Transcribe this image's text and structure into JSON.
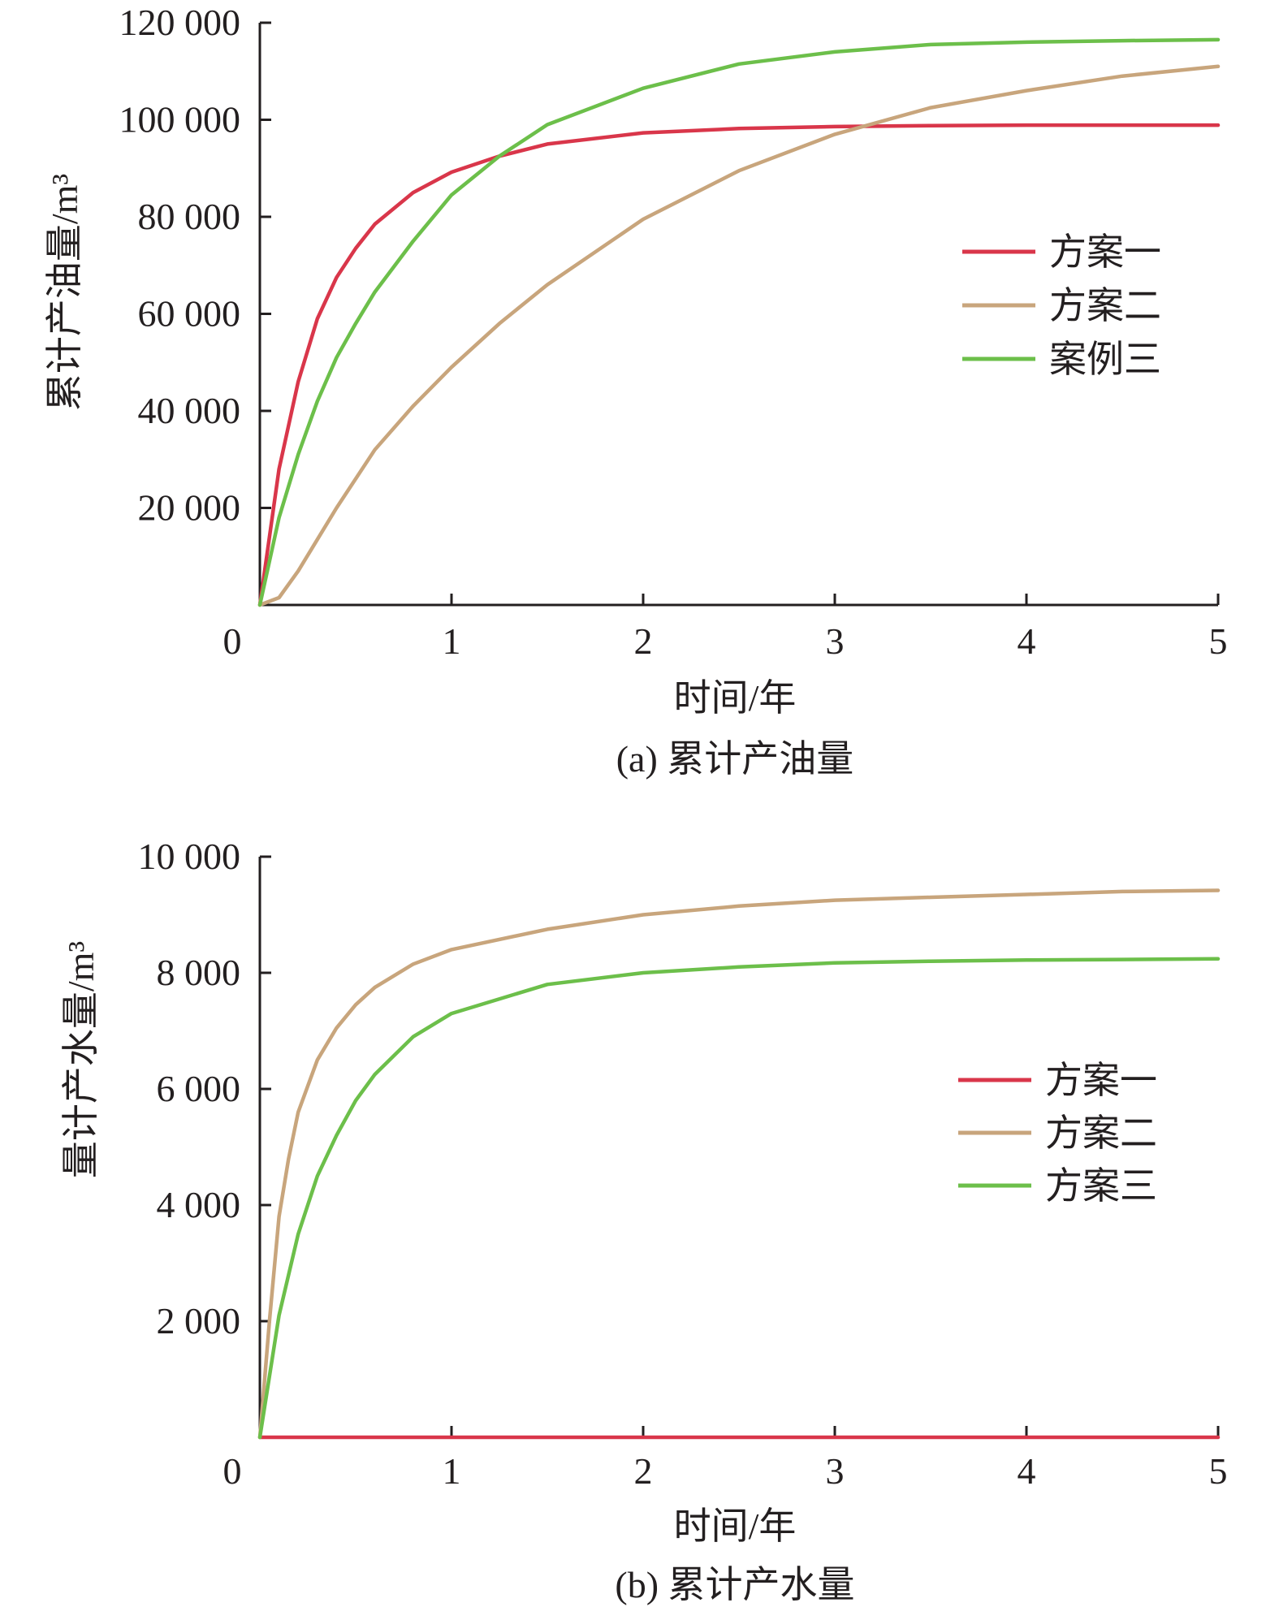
{
  "colors": {
    "scheme1": "#d9364a",
    "scheme2": "#c8a57c",
    "scheme3": "#6cbf4a",
    "axis": "#231f20"
  },
  "chart_data": [
    {
      "type": "line",
      "caption": "(a) 累计产油量",
      "xlabel": "时间/年",
      "ylabel": "累计产油量/m³",
      "xlim": [
        0,
        5
      ],
      "ylim": [
        0,
        120000
      ],
      "xticks": [
        0,
        1,
        2,
        3,
        4,
        5
      ],
      "xtick_labels": [
        "0",
        "1",
        "2",
        "3",
        "4",
        "5"
      ],
      "yticks": [
        20000,
        40000,
        60000,
        80000,
        100000,
        120000
      ],
      "ytick_labels": [
        "20 000",
        "40 000",
        "60 000",
        "80 000",
        "100 000",
        "120 000"
      ],
      "legend_position": "right",
      "series": [
        {
          "name": "方案一",
          "color": "#d9364a",
          "x": [
            0,
            0.1,
            0.2,
            0.3,
            0.4,
            0.5,
            0.6,
            0.8,
            1.0,
            1.25,
            1.5,
            2.0,
            2.5,
            3.0,
            3.5,
            4.0,
            4.5,
            5.0
          ],
          "y": [
            0,
            28000,
            46000,
            59000,
            67500,
            73500,
            78500,
            85000,
            89200,
            92500,
            95000,
            97300,
            98200,
            98600,
            98800,
            98900,
            98900,
            98900
          ]
        },
        {
          "name": "方案二",
          "color": "#c8a57c",
          "x": [
            0,
            0.1,
            0.2,
            0.4,
            0.6,
            0.8,
            1.0,
            1.25,
            1.5,
            2.0,
            2.5,
            3.0,
            3.5,
            4.0,
            4.5,
            5.0
          ],
          "y": [
            0,
            1500,
            7000,
            20000,
            32000,
            41000,
            49000,
            58000,
            66000,
            79500,
            89500,
            97000,
            102500,
            106000,
            109000,
            111000
          ]
        },
        {
          "name": "案例三",
          "color": "#6cbf4a",
          "x": [
            0,
            0.1,
            0.2,
            0.3,
            0.4,
            0.5,
            0.6,
            0.8,
            1.0,
            1.25,
            1.5,
            2.0,
            2.5,
            3.0,
            3.5,
            4.0,
            4.5,
            5.0
          ],
          "y": [
            0,
            18000,
            31000,
            42000,
            51000,
            58000,
            64500,
            75000,
            84500,
            92500,
            99000,
            106500,
            111500,
            114000,
            115500,
            116000,
            116300,
            116500
          ]
        }
      ]
    },
    {
      "type": "line",
      "caption": "(b) 累计产水量",
      "xlabel": "时间/年",
      "ylabel": "量计产水量/m³",
      "xlim": [
        0,
        5
      ],
      "ylim": [
        0,
        10000
      ],
      "xticks": [
        0,
        1,
        2,
        3,
        4,
        5
      ],
      "xtick_labels": [
        "0",
        "1",
        "2",
        "3",
        "4",
        "5"
      ],
      "yticks": [
        2000,
        4000,
        6000,
        8000,
        10000
      ],
      "ytick_labels": [
        "2 000",
        "4 000",
        "6 000",
        "8 000",
        "10 000"
      ],
      "legend_position": "right",
      "series": [
        {
          "name": "方案一",
          "color": "#d9364a",
          "x": [
            0,
            1,
            2,
            3,
            4,
            5
          ],
          "y": [
            0,
            0,
            0,
            0,
            0,
            0
          ]
        },
        {
          "name": "方案二",
          "color": "#c8a57c",
          "x": [
            0,
            0.05,
            0.1,
            0.15,
            0.2,
            0.3,
            0.4,
            0.5,
            0.6,
            0.8,
            1.0,
            1.5,
            2.0,
            2.5,
            3.0,
            3.5,
            4.0,
            4.5,
            5.0
          ],
          "y": [
            0,
            2000,
            3800,
            4800,
            5600,
            6500,
            7050,
            7450,
            7750,
            8150,
            8400,
            8750,
            9000,
            9150,
            9250,
            9300,
            9350,
            9400,
            9420
          ]
        },
        {
          "name": "方案三",
          "color": "#6cbf4a",
          "x": [
            0,
            0.1,
            0.2,
            0.3,
            0.4,
            0.5,
            0.6,
            0.8,
            1.0,
            1.5,
            2.0,
            2.5,
            3.0,
            3.5,
            4.0,
            4.5,
            5.0
          ],
          "y": [
            0,
            2100,
            3500,
            4500,
            5200,
            5800,
            6250,
            6900,
            7300,
            7800,
            8000,
            8100,
            8170,
            8200,
            8220,
            8230,
            8240
          ]
        }
      ]
    }
  ]
}
